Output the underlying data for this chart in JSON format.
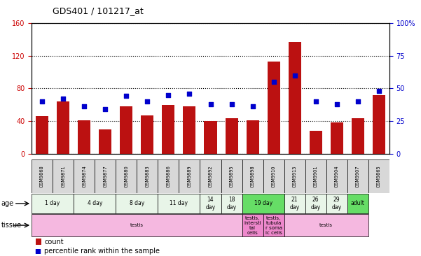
{
  "title": "GDS401 / 101217_at",
  "samples": [
    "GSM9868",
    "GSM9871",
    "GSM9874",
    "GSM9877",
    "GSM9880",
    "GSM9883",
    "GSM9886",
    "GSM9889",
    "GSM9892",
    "GSM9895",
    "GSM9898",
    "GSM9910",
    "GSM9913",
    "GSM9901",
    "GSM9904",
    "GSM9907",
    "GSM9865"
  ],
  "counts": [
    46,
    64,
    41,
    30,
    58,
    47,
    60,
    58,
    40,
    43,
    41,
    113,
    137,
    28,
    38,
    43,
    72
  ],
  "percentiles": [
    40,
    42,
    36,
    34,
    44,
    40,
    45,
    46,
    38,
    38,
    36,
    55,
    60,
    40,
    38,
    40,
    48
  ],
  "bar_color": "#bb1111",
  "dot_color": "#0000cc",
  "yticks_left": [
    0,
    40,
    80,
    120,
    160
  ],
  "yticks_right": [
    0,
    25,
    50,
    75,
    100
  ],
  "ylim_left": [
    0,
    160
  ],
  "ylim_right": [
    0,
    100
  ],
  "age_groups": [
    {
      "label": "1 day",
      "start": 0,
      "end": 2,
      "color": "#e8f5e8"
    },
    {
      "label": "4 day",
      "start": 2,
      "end": 4,
      "color": "#e8f5e8"
    },
    {
      "label": "8 day",
      "start": 4,
      "end": 6,
      "color": "#e8f5e8"
    },
    {
      "label": "11 day",
      "start": 6,
      "end": 8,
      "color": "#e8f5e8"
    },
    {
      "label": "14\nday",
      "start": 8,
      "end": 9,
      "color": "#e8f5e8"
    },
    {
      "label": "18\nday",
      "start": 9,
      "end": 10,
      "color": "#e8f5e8"
    },
    {
      "label": "19 day",
      "start": 10,
      "end": 12,
      "color": "#66dd66"
    },
    {
      "label": "21\nday",
      "start": 12,
      "end": 13,
      "color": "#e8f5e8"
    },
    {
      "label": "26\nday",
      "start": 13,
      "end": 14,
      "color": "#e8f5e8"
    },
    {
      "label": "29\nday",
      "start": 14,
      "end": 15,
      "color": "#e8f5e8"
    },
    {
      "label": "adult",
      "start": 15,
      "end": 16,
      "color": "#66dd66"
    }
  ],
  "tissue_groups": [
    {
      "label": "testis",
      "start": 0,
      "end": 10,
      "color": "#f5b8e0"
    },
    {
      "label": "testis,\nintersti\ntal\ncells",
      "start": 10,
      "end": 11,
      "color": "#ee88cc"
    },
    {
      "label": "testis,\ntubula\nr soma\nic cells",
      "start": 11,
      "end": 12,
      "color": "#ee88cc"
    },
    {
      "label": "testis",
      "start": 12,
      "end": 16,
      "color": "#f5b8e0"
    }
  ],
  "background_color": "#ffffff",
  "label_color_left": "#cc0000",
  "label_color_right": "#0000cc"
}
